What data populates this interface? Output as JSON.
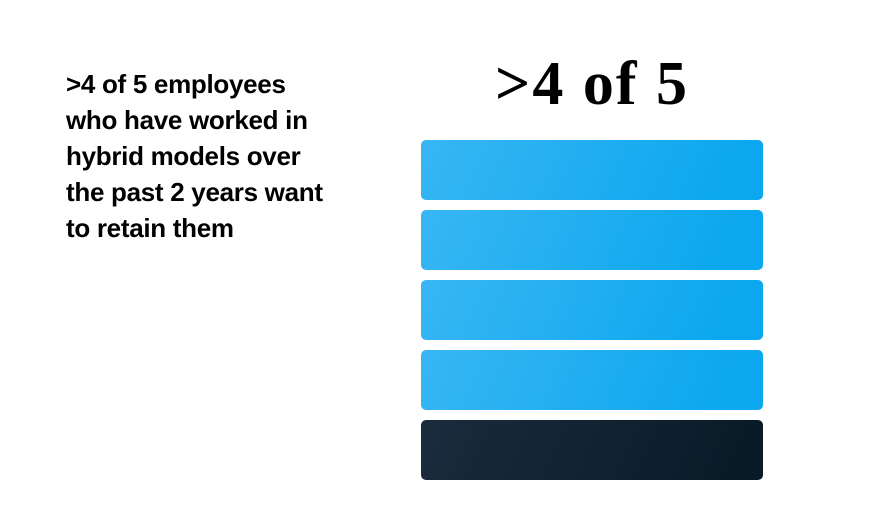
{
  "canvas": {
    "background": "#FFFFFF"
  },
  "statement": {
    "full_text": ">4 of 5 employees who have worked in hybrid models over the past 2 years want to retain them",
    "lines": [
      ">4 of 5 employees",
      "who have worked in",
      "hybrid models over",
      "the past 2 years want",
      "to retain them"
    ]
  },
  "figure": {
    "title": ">4 of 5"
  },
  "chart_data": {
    "type": "bar",
    "title": ">4 of 5",
    "caption": ">4 of 5 employees who have worked in hybrid models over the past 2 years want to retain them",
    "orientation": "horizontal-stacked-units",
    "total_units": 5,
    "highlighted_units": 4,
    "muted_units": 1,
    "categories": [
      "unit-1",
      "unit-2",
      "unit-3",
      "unit-4",
      "unit-5"
    ],
    "values": [
      1,
      1,
      1,
      1,
      1
    ],
    "segments": [
      {
        "state": "highlighted"
      },
      {
        "state": "highlighted"
      },
      {
        "state": "highlighted"
      },
      {
        "state": "highlighted"
      },
      {
        "state": "muted"
      }
    ],
    "legend": "none",
    "grid": "off",
    "axes": "none",
    "colors": {
      "highlight_start": "#38B6F3",
      "highlight_end": "#0BA7EF",
      "muted_start": "#1A2C3D",
      "muted_end": "#0A1B28",
      "text": "#000000",
      "background": "#FFFFFF"
    }
  }
}
